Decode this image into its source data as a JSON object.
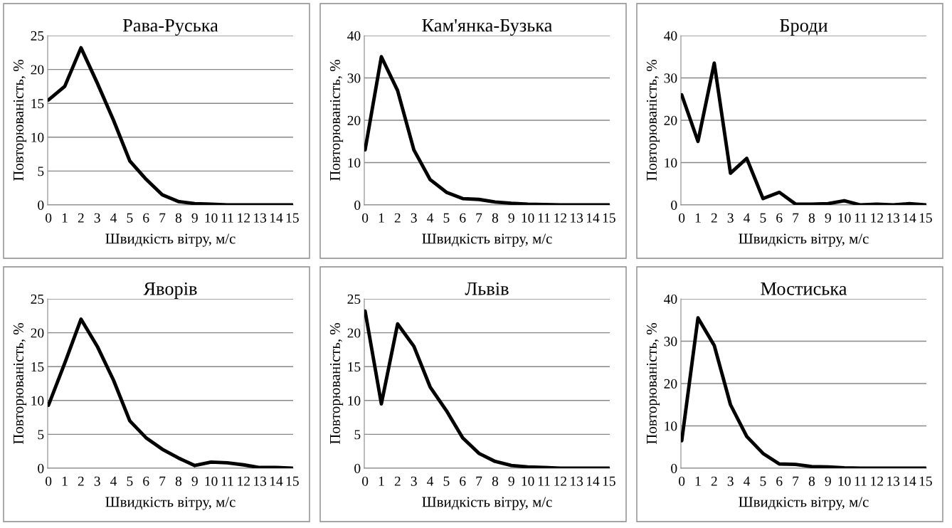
{
  "chart_data": [
    {
      "type": "line",
      "title": "Рава-Руська",
      "xlabel": "Швидкість вітру, м/с",
      "ylabel": "Повторюваність, %",
      "categories": [
        "0",
        "1",
        "2",
        "3",
        "4",
        "5",
        "6",
        "7",
        "8",
        "9",
        "10",
        "11",
        "12",
        "13",
        "14",
        "15"
      ],
      "ylim": [
        0,
        25
      ],
      "yticks": [
        0,
        5,
        10,
        15,
        20,
        25
      ],
      "grid": "y",
      "marker": "none",
      "line_style": "solid",
      "series": [
        {
          "color": "#000000",
          "values": [
            15.5,
            17.5,
            23.2,
            18,
            12.5,
            6.5,
            3.8,
            1.5,
            0.5,
            0.2,
            0.1,
            0,
            0,
            0,
            0,
            0
          ]
        }
      ]
    },
    {
      "type": "line",
      "title": "Кам'янка-Бузька",
      "xlabel": "Швидкість вітру, м/с",
      "ylabel": "Повторюваність, %",
      "categories": [
        "0",
        "1",
        "2",
        "3",
        "4",
        "5",
        "6",
        "7",
        "8",
        "9",
        "10",
        "11",
        "12",
        "13",
        "14",
        "15"
      ],
      "ylim": [
        0,
        40
      ],
      "yticks": [
        0,
        10,
        20,
        30,
        40
      ],
      "grid": "y",
      "marker": "none",
      "line_style": "solid",
      "series": [
        {
          "color": "#000000",
          "values": [
            13,
            35,
            27,
            13,
            6,
            3,
            1.5,
            1.3,
            0.7,
            0.4,
            0.2,
            0.1,
            0,
            0,
            0,
            0
          ]
        }
      ]
    },
    {
      "type": "line",
      "title": "Броди",
      "xlabel": "Швидкість вітру, м/с",
      "ylabel": "Повторюваність, %",
      "categories": [
        "0",
        "1",
        "2",
        "3",
        "4",
        "5",
        "6",
        "7",
        "8",
        "9",
        "10",
        "11",
        "12",
        "13",
        "14",
        "15"
      ],
      "ylim": [
        0,
        40
      ],
      "yticks": [
        0,
        10,
        20,
        30,
        40
      ],
      "grid": "y",
      "marker": "none",
      "line_style": "solid",
      "series": [
        {
          "color": "#000000",
          "values": [
            26,
            15,
            33.5,
            7.5,
            11,
            1.5,
            3,
            0.2,
            0.2,
            0.3,
            1,
            0,
            0.2,
            0,
            0.3,
            0
          ]
        }
      ]
    },
    {
      "type": "line",
      "title": "Яворів",
      "xlabel": "Швидкість вітру, м/с",
      "ylabel": "Повторюваність, %",
      "categories": [
        "0",
        "1",
        "2",
        "3",
        "4",
        "5",
        "6",
        "7",
        "8",
        "9",
        "10",
        "11",
        "12",
        "13",
        "14",
        "15"
      ],
      "ylim": [
        0,
        25
      ],
      "yticks": [
        0,
        5,
        10,
        15,
        20,
        25
      ],
      "grid": "y",
      "marker": "none",
      "line_style": "solid",
      "series": [
        {
          "color": "#000000",
          "values": [
            9.3,
            15.5,
            22,
            18,
            13,
            7,
            4.5,
            2.8,
            1.5,
            0.4,
            0.9,
            0.8,
            0.5,
            0.1,
            0.1,
            0
          ]
        }
      ]
    },
    {
      "type": "line",
      "title": "Львів",
      "xlabel": "Швидкість вітру, м/с",
      "ylabel": "Повторюваність, %",
      "categories": [
        "0",
        "1",
        "2",
        "3",
        "4",
        "5",
        "6",
        "7",
        "8",
        "9",
        "10",
        "11",
        "12",
        "13",
        "14",
        "15"
      ],
      "ylim": [
        0,
        25
      ],
      "yticks": [
        0,
        5,
        10,
        15,
        20,
        25
      ],
      "grid": "y",
      "marker": "none",
      "line_style": "solid",
      "series": [
        {
          "color": "#000000",
          "values": [
            23.2,
            9.5,
            21.3,
            18,
            12,
            8.5,
            4.5,
            2.2,
            1,
            0.4,
            0.2,
            0.1,
            0,
            0,
            0,
            0
          ]
        }
      ]
    },
    {
      "type": "line",
      "title": "Мостиська",
      "xlabel": "Швидкість вітру, м/с",
      "ylabel": "Повторюваність, %",
      "categories": [
        "0",
        "1",
        "2",
        "3",
        "4",
        "5",
        "6",
        "7",
        "8",
        "9",
        "10",
        "11",
        "12",
        "13",
        "14",
        "15"
      ],
      "ylim": [
        0,
        40
      ],
      "yticks": [
        0,
        10,
        20,
        30,
        40
      ],
      "grid": "y",
      "marker": "none",
      "line_style": "solid",
      "series": [
        {
          "color": "#000000",
          "values": [
            6.5,
            35.5,
            29,
            15,
            7.5,
            3.5,
            1,
            0.9,
            0.4,
            0.3,
            0.1,
            0,
            0,
            0,
            0,
            0
          ]
        }
      ]
    }
  ]
}
